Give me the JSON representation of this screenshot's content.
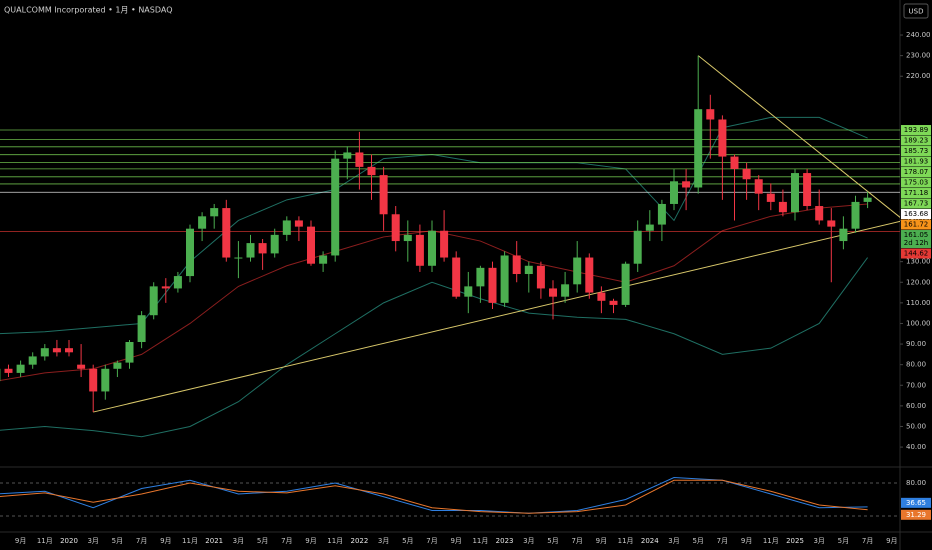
{
  "header": {
    "title": "QUALCOMM Incorporated • 1月 • NASDAQ",
    "currency": "USD"
  },
  "chart_data": [
    {
      "type": "candlestick",
      "categories": [
        null,
        null,
        "9月",
        null,
        "11月",
        null,
        "2020",
        null,
        "3月",
        null,
        "5月",
        null,
        "7月",
        null,
        "9月",
        null,
        "11月",
        null,
        "2021",
        null,
        "3月",
        null,
        "5月",
        null,
        "7月",
        null,
        "9月",
        null,
        "11月",
        null,
        "2022",
        null,
        "3月",
        null,
        "5月",
        null,
        "7月",
        null,
        "9月",
        null,
        "11月",
        null,
        "2023",
        null,
        "3月",
        null,
        "5月",
        null,
        "7月",
        null,
        "9月",
        null,
        "11月",
        null,
        "2024",
        null,
        "3月",
        null,
        "5月",
        null,
        "7月",
        null,
        "9月",
        null,
        "11月",
        null,
        "2025",
        null,
        "3月",
        null,
        "5月",
        null,
        "7月",
        null,
        "9月"
      ],
      "open": [
        72,
        78,
        76,
        80,
        84,
        88,
        88,
        80,
        78,
        67,
        78,
        81,
        91,
        104,
        118,
        117,
        123,
        146,
        152,
        156,
        132,
        132,
        139,
        134,
        143,
        150,
        147,
        129,
        133,
        180,
        183,
        176,
        172,
        153,
        140,
        143,
        128,
        145,
        132,
        113,
        118,
        127,
        110,
        133,
        124,
        128,
        117,
        113,
        119,
        132,
        115,
        111,
        109,
        129,
        145,
        148,
        158,
        169,
        166,
        204,
        199,
        181,
        175,
        170,
        163,
        159,
        154,
        173,
        157,
        150,
        140,
        146,
        159,
        null,
        null
      ],
      "high": [
        80,
        80,
        82,
        86,
        90,
        92,
        92,
        90,
        80,
        80,
        82,
        92,
        106,
        120,
        122,
        125,
        148,
        154,
        158,
        160,
        140,
        143,
        141,
        146,
        152,
        152,
        150,
        135,
        184,
        186,
        193,
        182,
        176,
        157,
        150,
        148,
        150,
        155,
        135,
        125,
        128,
        130,
        135,
        140,
        130,
        130,
        121,
        125,
        140,
        134,
        118,
        112,
        130,
        150,
        155,
        160,
        175,
        175,
        230,
        211,
        201,
        182,
        178,
        172,
        168,
        165,
        175,
        175,
        165,
        156,
        152,
        162,
        164,
        null,
        null
      ],
      "low": [
        68,
        74,
        74,
        78,
        82,
        84,
        84,
        74,
        57,
        63,
        74,
        78,
        88,
        102,
        110,
        115,
        120,
        140,
        146,
        130,
        122,
        130,
        126,
        132,
        140,
        140,
        128,
        125,
        130,
        170,
        165,
        160,
        145,
        135,
        130,
        125,
        125,
        130,
        112,
        105,
        110,
        107,
        108,
        120,
        115,
        112,
        102,
        110,
        115,
        112,
        105,
        105,
        108,
        125,
        140,
        140,
        155,
        155,
        163,
        180,
        160,
        150,
        160,
        155,
        155,
        152,
        150,
        155,
        148,
        120,
        136,
        144,
        156,
        null,
        null
      ],
      "close": [
        78,
        76,
        80,
        84,
        88,
        86,
        86,
        78,
        67,
        78,
        81,
        91,
        104,
        118,
        117,
        123,
        146,
        152,
        156,
        132,
        132,
        139,
        134,
        143,
        150,
        147,
        129,
        133,
        180,
        183,
        176,
        172,
        153,
        140,
        143,
        128,
        145,
        132,
        113,
        118,
        127,
        110,
        133,
        124,
        128,
        117,
        113,
        119,
        132,
        115,
        111,
        109,
        129,
        145,
        148,
        158,
        169,
        166,
        204,
        199,
        181,
        175,
        170,
        163,
        159,
        154,
        173,
        157,
        150,
        147,
        146,
        159,
        161.05,
        null,
        null
      ],
      "up_color": "#4caf50",
      "down_color": "#f23645",
      "ylim": [
        31.3,
        257
      ],
      "yticks": [
        {
          "value": 240,
          "label": "240.00"
        },
        {
          "value": 230,
          "label": "230.00"
        },
        {
          "value": 220,
          "label": "220.00"
        },
        {
          "value": 150,
          "label": "150.00"
        },
        {
          "value": 130,
          "label": "130.00"
        },
        {
          "value": 120,
          "label": "120.00"
        },
        {
          "value": 110,
          "label": "110.00"
        },
        {
          "value": 100,
          "label": "100.00"
        },
        {
          "value": 90,
          "label": "90.00"
        },
        {
          "value": 80,
          "label": "80.00"
        },
        {
          "value": 70,
          "label": "70.00"
        },
        {
          "value": 60,
          "label": "60.00"
        },
        {
          "value": 50,
          "label": "50.00"
        },
        {
          "value": 40,
          "label": "40.00"
        }
      ],
      "bands_x": [
        0,
        4,
        8,
        12,
        16,
        20,
        24,
        28,
        32,
        36,
        40,
        44,
        48,
        52,
        56,
        60,
        64,
        68,
        72
      ],
      "bands": [
        {
          "color": "#1f6f63",
          "values": [
            95,
            96,
            98,
            100,
            130,
            150,
            160,
            165,
            180,
            182,
            178,
            178,
            178,
            175,
            150,
            195,
            200,
            200,
            190
          ]
        },
        {
          "color": "#8b1e1e",
          "values": [
            72,
            76,
            78,
            85,
            100,
            118,
            128,
            135,
            142,
            145,
            140,
            130,
            125,
            120,
            128,
            145,
            152,
            156,
            158
          ]
        },
        {
          "color": "#1f6f63",
          "values": [
            48,
            50,
            48,
            45,
            50,
            62,
            80,
            95,
            110,
            120,
            112,
            105,
            103,
            102,
            95,
            85,
            88,
            100,
            132
          ]
        }
      ],
      "levels": [
        {
          "value": 193.89,
          "color": "#7ed957"
        },
        {
          "value": 189.23,
          "color": "#7ed957"
        },
        {
          "value": 185.73,
          "color": "#7ed957"
        },
        {
          "value": 181.93,
          "color": "#7ed957"
        },
        {
          "value": 178.07,
          "color": "#7ed957"
        },
        {
          "value": 175.03,
          "color": "#7ed957"
        },
        {
          "value": 171.18,
          "color": "#7ed957"
        },
        {
          "value": 167.73,
          "color": "#7ed957"
        },
        {
          "value": 163.68,
          "color": "#ffffff"
        },
        {
          "value": 144.62,
          "color": "#e53935"
        }
      ],
      "previous_close": 161.72,
      "previous_close_color": "#f7931a",
      "countdown": "2d 12h",
      "trendlines": [
        {
          "x": [
            8,
            75
          ],
          "y": [
            57,
            150
          ],
          "color": "#d8c76a"
        },
        {
          "x": [
            58,
            75
          ],
          "y": [
            230,
            150
          ],
          "color": "#d8c76a"
        }
      ]
    },
    {
      "type": "line",
      "x": [
        0,
        4,
        8,
        12,
        16,
        20,
        24,
        28,
        32,
        36,
        40,
        44,
        48,
        52,
        56,
        60,
        64,
        68,
        72
      ],
      "series": [
        {
          "color": "#2f7fe0",
          "values": [
            60,
            65,
            35,
            70,
            85,
            60,
            65,
            80,
            55,
            30,
            30,
            25,
            30,
            50,
            90,
            85,
            60,
            35,
            36.65
          ]
        },
        {
          "color": "#e8762c",
          "values": [
            55,
            62,
            45,
            60,
            80,
            65,
            62,
            75,
            60,
            35,
            28,
            25,
            28,
            40,
            85,
            85,
            65,
            40,
            31.29
          ]
        }
      ],
      "ylim": [
        0,
        100
      ],
      "yticks": [
        {
          "value": 80,
          "label": "80.00"
        },
        {
          "value": 20,
          "label": "20.00"
        }
      ]
    }
  ]
}
